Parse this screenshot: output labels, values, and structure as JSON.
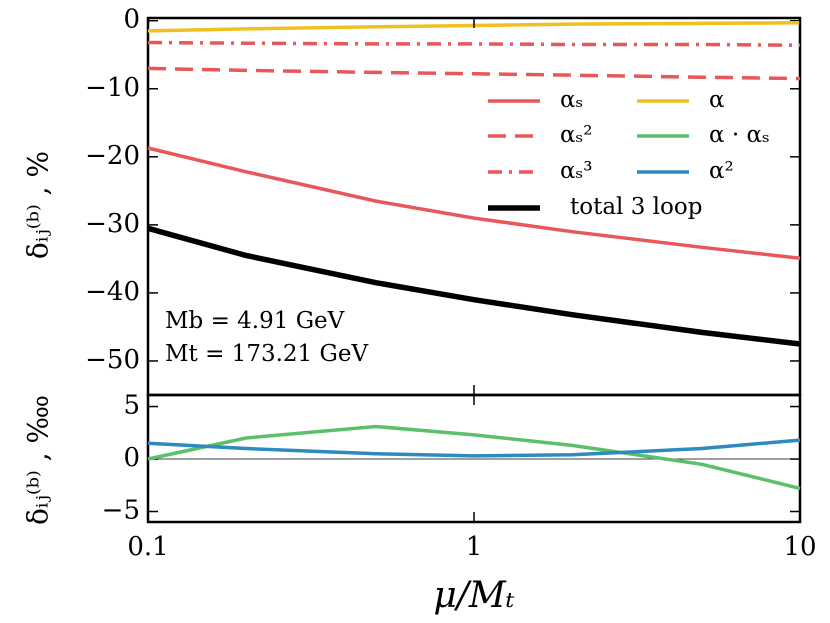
{
  "chart_data": [
    {
      "type": "line",
      "y_label": "δᵢⱼ⁽ᵇ⁾ , %",
      "log_x": true,
      "xlim": [
        0.1,
        10
      ],
      "ylim": [
        -55,
        0.4
      ],
      "yticks": [
        0,
        {
          "value": -10,
          "label": "−10"
        },
        {
          "value": -20,
          "label": "−20"
        },
        {
          "value": -30,
          "label": "−30"
        },
        {
          "value": -40,
          "label": "−40"
        },
        {
          "value": -50,
          "label": "−50"
        }
      ],
      "x": [
        0.1,
        0.2,
        0.5,
        1,
        2,
        5,
        10
      ],
      "series": [
        {
          "name": "αₛ",
          "color": "#e8585a",
          "dash": "solid",
          "width": 3.5,
          "values": [
            -18.7,
            -22.2,
            -26.5,
            -29.0,
            -31.0,
            -33.3,
            -34.9
          ]
        },
        {
          "name": "αₛ²",
          "color": "#e8585a",
          "dash": "dashed",
          "width": 3.5,
          "values": [
            -7.0,
            -7.3,
            -7.6,
            -7.8,
            -8.0,
            -8.3,
            -8.5
          ]
        },
        {
          "name": "αₛ³",
          "color": "#e8585a",
          "dash": "dashdot",
          "width": 3.5,
          "values": [
            -3.2,
            -3.3,
            -3.4,
            -3.4,
            -3.5,
            -3.5,
            -3.6
          ]
        },
        {
          "name": "total 3 loop",
          "color": "#000000",
          "dash": "solid",
          "width": 5.5,
          "values": [
            -30.5,
            -34.5,
            -38.5,
            -41.0,
            -43.2,
            -45.8,
            -47.5
          ]
        },
        {
          "name": "α",
          "color": "#f0c020",
          "dash": "solid",
          "width": 3.5,
          "values": [
            -1.5,
            -1.2,
            -0.9,
            -0.7,
            -0.5,
            -0.4,
            -0.3
          ]
        }
      ],
      "annotations": [
        "Mb = 4.91 GeV",
        "Mt = 173.21 GeV"
      ]
    },
    {
      "type": "line",
      "y_label": "δᵢⱼ⁽ᵇ⁾ , ‱",
      "x_label": "μ/Mₜ",
      "log_x": true,
      "xlim": [
        0.1,
        10
      ],
      "ylim": [
        -6,
        6.1
      ],
      "xticks": [
        0.1,
        1,
        10
      ],
      "yticks": [
        5,
        0,
        {
          "value": -5,
          "label": "−5"
        }
      ],
      "hline": 0,
      "x": [
        0.1,
        0.2,
        0.5,
        1,
        2,
        5,
        10
      ],
      "series": [
        {
          "name": "α · αₛ",
          "color": "#5cbf6b",
          "dash": "solid",
          "width": 3.5,
          "values": [
            0.0,
            2.0,
            3.1,
            2.3,
            1.3,
            -0.5,
            -2.8
          ]
        },
        {
          "name": "α²",
          "color": "#2e8bc0",
          "dash": "solid",
          "width": 3.5,
          "values": [
            1.5,
            1.0,
            0.5,
            0.3,
            0.4,
            1.0,
            1.8
          ]
        }
      ]
    }
  ]
}
